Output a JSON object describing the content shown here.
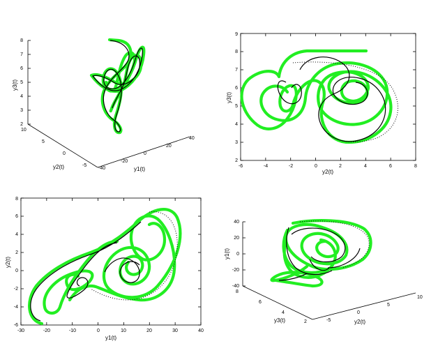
{
  "colors": {
    "approx": "#22ee22",
    "exact": "#000000",
    "axis": "#000000"
  },
  "chart_data": [
    {
      "type": "line",
      "projection": "3d",
      "xlabel": "y1(t)",
      "ylabel": "y2(t)",
      "zlabel": "y3(t)",
      "xticks": [
        "-40",
        "-20",
        "0",
        "20",
        "40"
      ],
      "yticks": [
        "-5",
        "0",
        "5",
        "10"
      ],
      "zticks": [
        "2",
        "3",
        "4",
        "5",
        "6",
        "7",
        "8"
      ],
      "xlim": [
        -40,
        40
      ],
      "ylim": [
        -5,
        10
      ],
      "zlim": [
        2,
        8
      ]
    },
    {
      "type": "line",
      "xlabel": "y2(t)",
      "ylabel": "y3(t)",
      "xticks": [
        "-6",
        "-4",
        "-2",
        "0",
        "2",
        "4",
        "6",
        "8"
      ],
      "yticks": [
        "2",
        "3",
        "4",
        "5",
        "6",
        "7",
        "8",
        "9"
      ],
      "xlim": [
        -6,
        8
      ],
      "ylim": [
        2,
        9
      ]
    },
    {
      "type": "line",
      "xlabel": "y1(t)",
      "ylabel": "y2(t)",
      "xticks": [
        "-30",
        "-20",
        "-10",
        "0",
        "10",
        "20",
        "30",
        "40"
      ],
      "yticks": [
        "-6",
        "-4",
        "-2",
        "0",
        "2",
        "4",
        "6",
        "8"
      ],
      "xlim": [
        -30,
        40
      ],
      "ylim": [
        -6,
        8
      ]
    },
    {
      "type": "line",
      "projection": "3d",
      "xlabel": "y2(t)",
      "ylabel": "y3(t)",
      "zlabel": "y1(t)",
      "xticks": [
        "-5",
        "0",
        "5",
        "10"
      ],
      "yticks": [
        "2",
        "4",
        "6",
        "8"
      ],
      "zticks": [
        "-40",
        "-20",
        "0",
        "20",
        "40"
      ],
      "xlim": [
        -5,
        10
      ],
      "ylim": [
        2,
        8
      ],
      "zlim": [
        -40,
        40
      ]
    }
  ]
}
